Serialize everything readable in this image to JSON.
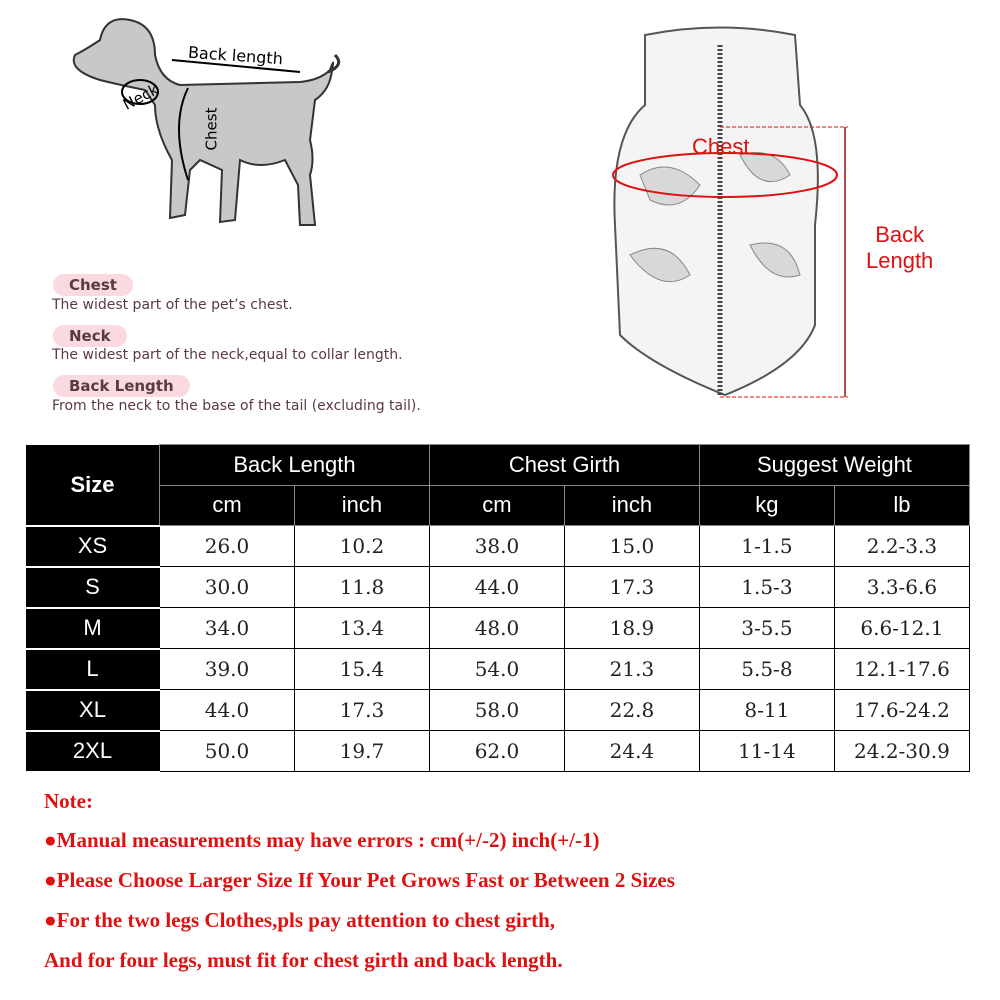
{
  "dog_diagram": {
    "back_length_label": "Back length",
    "neck_label": "Neck",
    "chest_label": "Chest"
  },
  "legend": [
    {
      "term": "Chest",
      "description": "The widest part of the pet’s chest."
    },
    {
      "term": "Neck",
      "description": "The widest part of the neck,equal to collar length."
    },
    {
      "term": "Back Length",
      "description": "From the neck to the base of the tail (excluding tail)."
    }
  ],
  "vest_diagram": {
    "chest_label": "Chest",
    "back_length_label_line1": "Back",
    "back_length_label_line2": "Length",
    "accent": "#e01010"
  },
  "table": {
    "size_header": "Size",
    "groups": [
      "Back Length",
      "Chest Girth",
      "Suggest Weight"
    ],
    "units": [
      "cm",
      "inch",
      "cm",
      "inch",
      "kg",
      "lb"
    ],
    "rows": [
      {
        "size": "XS",
        "values": [
          "26.0",
          "10.2",
          "38.0",
          "15.0",
          "1-1.5",
          "2.2-3.3"
        ]
      },
      {
        "size": "S",
        "values": [
          "30.0",
          "11.8",
          "44.0",
          "17.3",
          "1.5-3",
          "3.3-6.6"
        ]
      },
      {
        "size": "M",
        "values": [
          "34.0",
          "13.4",
          "48.0",
          "18.9",
          "3-5.5",
          "6.6-12.1"
        ]
      },
      {
        "size": "L",
        "values": [
          "39.0",
          "15.4",
          "54.0",
          "21.3",
          "5.5-8",
          "12.1-17.6"
        ]
      },
      {
        "size": "XL",
        "values": [
          "44.0",
          "17.3",
          "58.0",
          "22.8",
          "8-11",
          "17.6-24.2"
        ]
      },
      {
        "size": "2XL",
        "values": [
          "50.0",
          "19.7",
          "62.0",
          "24.4",
          "11-14",
          "24.2-30.9"
        ]
      }
    ]
  },
  "notes": {
    "title": "Note:",
    "lines": [
      "●Manual measurements may have errors : cm(+/-2)  inch(+/-1)",
      "●Please Choose Larger Size If Your Pet Grows Fast or Between 2 Sizes",
      "●For the two legs Clothes,pls pay attention to chest girth,",
      "And for four legs, must fit for chest girth and back length."
    ]
  }
}
